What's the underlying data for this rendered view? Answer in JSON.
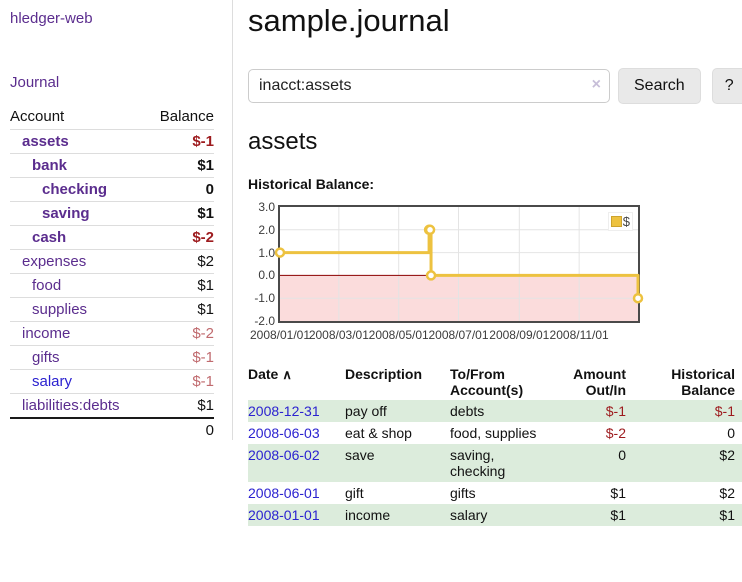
{
  "app": {
    "title": "hledger-web",
    "nav_journal": "Journal"
  },
  "sidebar": {
    "table_headers": {
      "account": "Account",
      "balance": "Balance"
    },
    "accounts": [
      {
        "name": "assets",
        "balance": "$-1",
        "indent": 1,
        "bold": true,
        "neg": "strong",
        "link": "purple"
      },
      {
        "name": "bank",
        "balance": "$1",
        "indent": 2,
        "bold": true,
        "neg": "none",
        "link": "purple"
      },
      {
        "name": "checking",
        "balance": "0",
        "indent": 3,
        "bold": true,
        "neg": "none",
        "link": "purple"
      },
      {
        "name": "saving",
        "balance": "$1",
        "indent": 3,
        "bold": true,
        "neg": "none",
        "link": "purple"
      },
      {
        "name": "cash",
        "balance": "$-2",
        "indent": 2,
        "bold": true,
        "neg": "strong",
        "link": "purple"
      },
      {
        "name": "expenses",
        "balance": "$2",
        "indent": 1,
        "bold": false,
        "neg": "none",
        "link": "purple"
      },
      {
        "name": "food",
        "balance": "$1",
        "indent": 2,
        "bold": false,
        "neg": "none",
        "link": "purple"
      },
      {
        "name": "supplies",
        "balance": "$1",
        "indent": 2,
        "bold": false,
        "neg": "none",
        "link": "purple"
      },
      {
        "name": "income",
        "balance": "$-2",
        "indent": 1,
        "bold": false,
        "neg": "muted",
        "link": "purple"
      },
      {
        "name": "gifts",
        "balance": "$-1",
        "indent": 2,
        "bold": false,
        "neg": "muted",
        "link": "purple"
      },
      {
        "name": "salary",
        "balance": "$-1",
        "indent": 2,
        "bold": false,
        "neg": "muted",
        "link": "blue"
      },
      {
        "name": "liabilities:debts",
        "balance": "$1",
        "indent": 1,
        "bold": false,
        "neg": "none",
        "link": "purple"
      }
    ],
    "total": "0"
  },
  "header": {
    "title": "sample.journal"
  },
  "search": {
    "value": "inacct:assets",
    "clear_icon": "×",
    "button": "Search",
    "help_button": "?"
  },
  "account_page": {
    "heading": "assets",
    "chart_label": "Historical Balance:"
  },
  "chart_data": {
    "type": "line",
    "step": true,
    "title": "Historical Balance",
    "xlim": [
      "2008-01-01",
      "2008-12-31"
    ],
    "ylim": [
      -2,
      3
    ],
    "y_ticks": [
      3.0,
      2.0,
      1.0,
      0.0,
      -1.0,
      -2.0
    ],
    "x_ticks": [
      "2008/01/01",
      "2008/03/01",
      "2008/05/01",
      "2008/07/01",
      "2008/09/01",
      "2008/11/01"
    ],
    "series": [
      {
        "name": "$",
        "color": "#edc240",
        "points": [
          [
            "2008-01-01",
            1
          ],
          [
            "2008-06-01",
            2
          ],
          [
            "2008-06-02",
            2
          ],
          [
            "2008-06-03",
            0
          ],
          [
            "2008-12-31",
            -1
          ]
        ]
      }
    ],
    "legend_position": "top-right",
    "grid": true,
    "negative_region_fill": "#fbdcdc",
    "zero_line_color": "#8b0000"
  },
  "register": {
    "headers": [
      {
        "label": "Date",
        "sort_icon": "∧",
        "align": "left"
      },
      {
        "label": "Description",
        "align": "left"
      },
      {
        "label": "To/From Account(s)",
        "align": "left"
      },
      {
        "label": "Amount Out/In",
        "align": "right"
      },
      {
        "label": "Historical Balance",
        "align": "right"
      }
    ],
    "rows": [
      {
        "date": "2008-12-31",
        "description": "pay off",
        "accounts": "debts",
        "amount": "$-1",
        "amount_negative": true,
        "balance": "$-1",
        "balance_negative": true
      },
      {
        "date": "2008-06-03",
        "description": "eat & shop",
        "accounts": "food, supplies",
        "amount": "$-2",
        "amount_negative": true,
        "balance": "0",
        "balance_negative": false
      },
      {
        "date": "2008-06-02",
        "description": "save",
        "accounts": "saving, checking",
        "amount": "0",
        "amount_negative": false,
        "balance": "$2",
        "balance_negative": false
      },
      {
        "date": "2008-06-01",
        "description": "gift",
        "accounts": "gifts",
        "amount": "$1",
        "amount_negative": false,
        "balance": "$2",
        "balance_negative": false
      },
      {
        "date": "2008-01-01",
        "description": "income",
        "accounts": "salary",
        "amount": "$1",
        "amount_negative": false,
        "balance": "$1",
        "balance_negative": false
      }
    ]
  }
}
